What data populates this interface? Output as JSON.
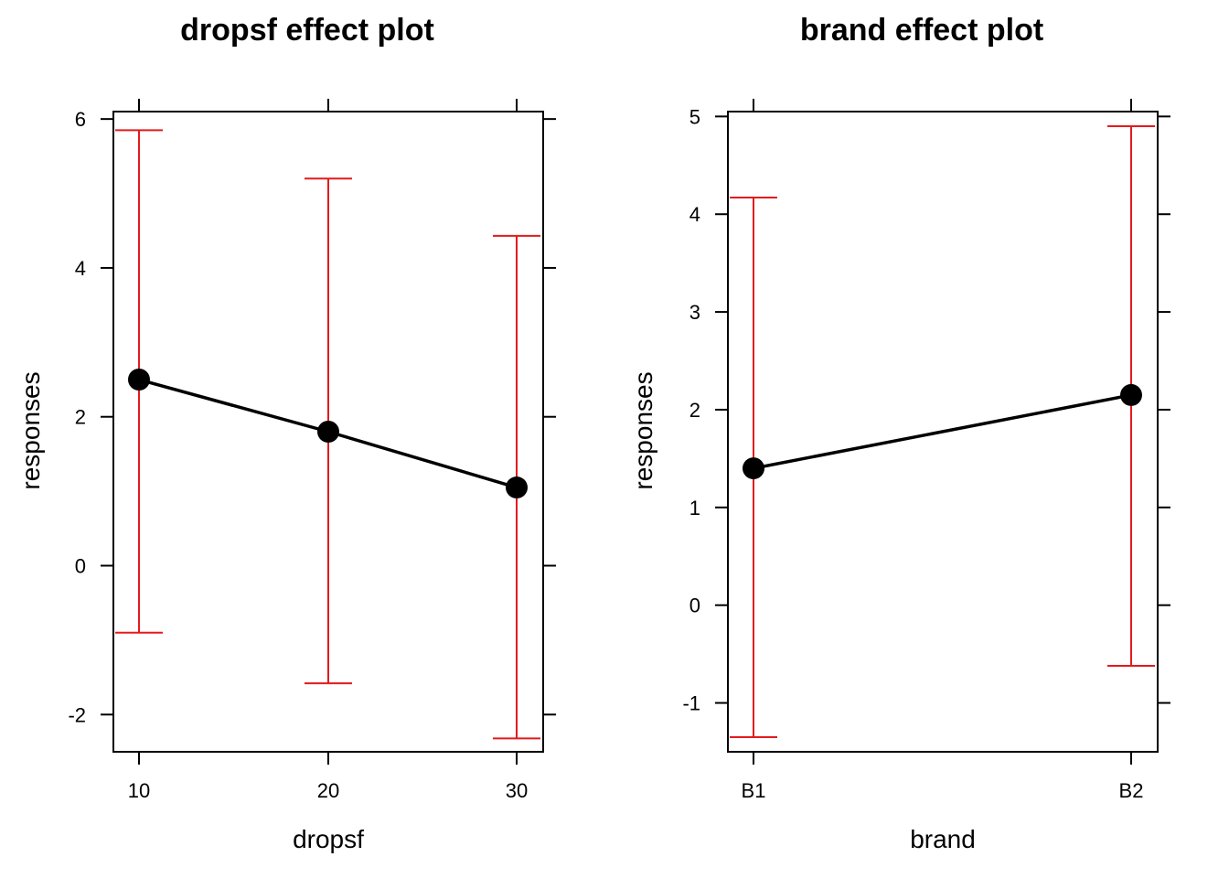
{
  "chart_data": [
    {
      "type": "line",
      "title": "dropsf effect plot",
      "xlabel": "dropsf",
      "ylabel": "responses",
      "x_tick_labels": [
        "10",
        "20",
        "30"
      ],
      "y_tick_labels": [
        "-2",
        "0",
        "2",
        "4",
        "6"
      ],
      "y_ticks": [
        -2,
        0,
        2,
        4,
        6
      ],
      "ylim": [
        -2.5,
        6.1
      ],
      "x": [
        10,
        20,
        30
      ],
      "y": [
        2.5,
        1.8,
        1.05
      ],
      "lower": [
        -0.9,
        -1.58,
        -2.32
      ],
      "upper": [
        5.85,
        5.2,
        4.43
      ],
      "line_color": "#000000",
      "ci_color": "#e31a1c"
    },
    {
      "type": "line",
      "title": "brand effect plot",
      "xlabel": "brand",
      "ylabel": "responses",
      "x_tick_labels": [
        "B1",
        "B2"
      ],
      "y_tick_labels": [
        "-1",
        "0",
        "1",
        "2",
        "3",
        "4",
        "5"
      ],
      "y_ticks": [
        -1,
        0,
        1,
        2,
        3,
        4,
        5
      ],
      "ylim": [
        -1.5,
        5.05
      ],
      "x": [
        "B1",
        "B2"
      ],
      "y": [
        1.4,
        2.15
      ],
      "lower": [
        -1.35,
        -0.62
      ],
      "upper": [
        4.17,
        4.9
      ],
      "line_color": "#000000",
      "ci_color": "#e31a1c"
    }
  ]
}
